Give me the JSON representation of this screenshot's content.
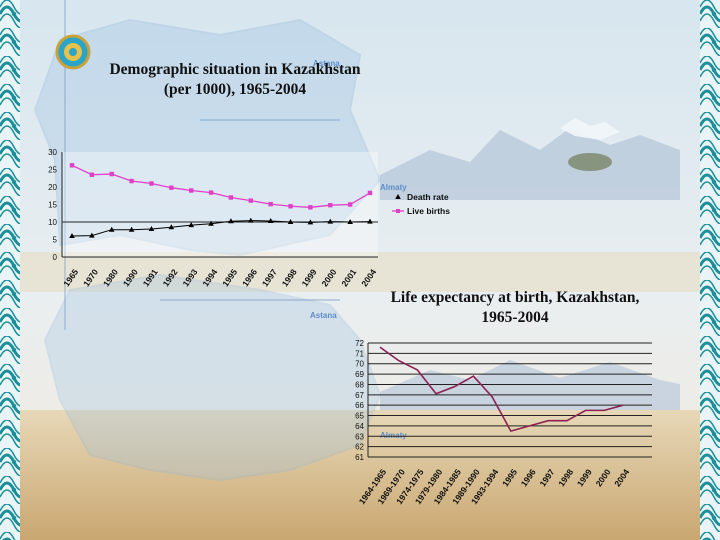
{
  "slide": {
    "title_chart1_line1": "Demographic situation in Kazakhstan",
    "title_chart1_line2": "(per 1000), 1965-2004",
    "title_chart2_line1": "Life expectancy at birth, Kazakhstan,",
    "title_chart2_line2": "1965-2004",
    "map_labels": {
      "astana_top": "Astana",
      "almaty_top": "Almaty",
      "astana_bottom": "Astana",
      "almaty_bottom": "Almaty"
    }
  },
  "colors": {
    "border_teal": "#1b8e9a",
    "border_light": "#e8f4f5",
    "death_rate": "#000000",
    "live_births": "#e040c8",
    "life_expectancy": "#8b2252",
    "map_blue": "#5b8ec8"
  },
  "chart_data": [
    {
      "type": "line",
      "categories": [
        "1965",
        "1970",
        "1980",
        "1990",
        "1991",
        "1992",
        "1993",
        "1994",
        "1995",
        "1996",
        "1997",
        "1998",
        "1999",
        "2000",
        "2001",
        "2004"
      ],
      "series": [
        {
          "name": "Death rate",
          "values": [
            6.0,
            6.1,
            7.8,
            7.8,
            8.0,
            8.5,
            9.1,
            9.5,
            10.2,
            10.4,
            10.3,
            10.0,
            9.9,
            10.1,
            10.0,
            10.1
          ]
        },
        {
          "name": "Live births",
          "values": [
            26.2,
            23.5,
            23.7,
            21.7,
            21.0,
            19.8,
            19.0,
            18.4,
            17.0,
            16.1,
            15.1,
            14.5,
            14.2,
            14.8,
            15.0,
            18.3
          ]
        }
      ],
      "ylim": [
        0,
        30
      ],
      "yticks": [
        0,
        5,
        10,
        15,
        20,
        25,
        30
      ],
      "legend": "right"
    },
    {
      "type": "line",
      "categories": [
        "1964-1965",
        "1969-1970",
        "1974-1975",
        "1979-1980",
        "1984-1985",
        "1989-1990",
        "1993-1994",
        "1995",
        "1996",
        "1997",
        "1998",
        "1999",
        "2000",
        "2004"
      ],
      "values": [
        71.6,
        70.3,
        69.4,
        67.1,
        67.8,
        68.8,
        66.8,
        63.5,
        64.0,
        64.5,
        64.5,
        65.5,
        65.5,
        66.0
      ],
      "ylim": [
        61,
        72
      ],
      "yticks": [
        61,
        62,
        63,
        64,
        65,
        66,
        67,
        68,
        69,
        70,
        71,
        72
      ]
    }
  ]
}
